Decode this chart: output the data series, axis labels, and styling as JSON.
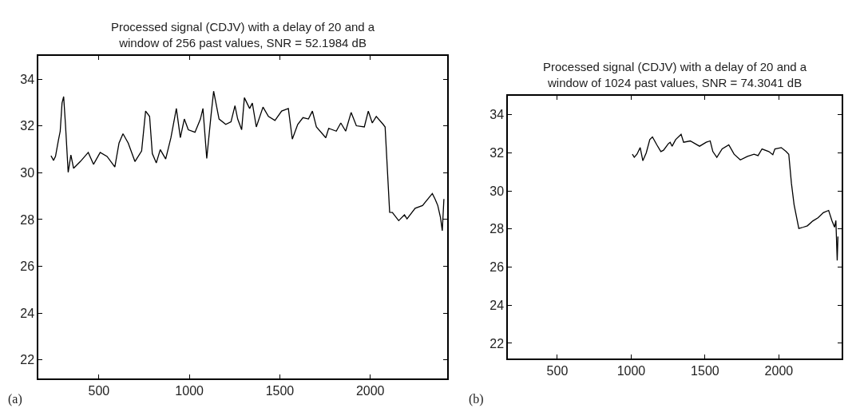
{
  "chart_data": [
    {
      "type": "line",
      "title": "Processed signal (CDJV) with a delay of 20 and a\nwindow of 256 past values, SNR = 52.1984 dB",
      "annotations": [
        "(a)"
      ],
      "xlim": [
        165,
        2425
      ],
      "xticks": [
        500,
        1000,
        1500,
        2000
      ],
      "ylim": [
        21.2,
        35
      ],
      "yticks": [
        22,
        24,
        26,
        28,
        30,
        32,
        34
      ],
      "series": [
        {
          "color": "#000000",
          "x": [
            235,
            249,
            260,
            276,
            286,
            296,
            305,
            315,
            330,
            345,
            360,
            397,
            441,
            470,
            507,
            545,
            588,
            611,
            633,
            662,
            699,
            736,
            758,
            780,
            795,
            817,
            839,
            869,
            898,
            928,
            950,
            972,
            994,
            1031,
            1061,
            1075,
            1096,
            1119,
            1134,
            1164,
            1201,
            1230,
            1252,
            1267,
            1289,
            1304,
            1333,
            1348,
            1370,
            1407,
            1437,
            1473,
            1510,
            1547,
            1569,
            1599,
            1628,
            1658,
            1680,
            1702,
            1754,
            1770,
            1812,
            1837,
            1864,
            1894,
            1923,
            1967,
            1989,
            2011,
            2033,
            2071,
            2082,
            2107,
            2122,
            2157,
            2189,
            2203,
            2248,
            2289,
            2343,
            2358,
            2373,
            2388,
            2398,
            2407
          ],
          "values": [
            30.73,
            30.53,
            30.7,
            31.39,
            31.78,
            32.98,
            33.26,
            32.07,
            30.02,
            30.76,
            30.19,
            30.48,
            30.87,
            30.36,
            30.87,
            30.7,
            30.25,
            31.27,
            31.67,
            31.27,
            30.48,
            30.93,
            32.64,
            32.41,
            30.82,
            30.42,
            30.99,
            30.59,
            31.5,
            32.75,
            31.5,
            32.3,
            31.84,
            31.73,
            32.3,
            32.75,
            30.61,
            32.41,
            33.49,
            32.3,
            32.07,
            32.18,
            32.87,
            32.3,
            31.84,
            33.21,
            32.75,
            32.98,
            31.96,
            32.81,
            32.41,
            32.24,
            32.64,
            32.75,
            31.44,
            32.07,
            32.36,
            32.3,
            32.64,
            31.96,
            31.5,
            31.9,
            31.78,
            32.13,
            31.78,
            32.58,
            32.01,
            31.96,
            32.64,
            32.13,
            32.41,
            32.07,
            31.96,
            28.31,
            28.3,
            27.95,
            28.2,
            28.03,
            28.48,
            28.6,
            29.11,
            28.88,
            28.6,
            28.09,
            27.52,
            28.88
          ]
        }
      ]
    },
    {
      "type": "line",
      "title": "Processed signal (CDJV) with a delay of 20 and a\nwindow of 1024 past values, SNR = 74.3041 dB",
      "annotations": [
        "(b)"
      ],
      "xlim": [
        165,
        2425
      ],
      "xticks": [
        500,
        1000,
        1500,
        2000
      ],
      "ylim": [
        21.2,
        35
      ],
      "yticks": [
        22,
        24,
        26,
        28,
        30,
        32,
        34
      ],
      "series": [
        {
          "color": "#000000",
          "x": [
            1008,
            1021,
            1039,
            1061,
            1079,
            1102,
            1126,
            1144,
            1174,
            1201,
            1219,
            1252,
            1264,
            1277,
            1301,
            1338,
            1355,
            1400,
            1463,
            1508,
            1535,
            1553,
            1580,
            1616,
            1661,
            1697,
            1739,
            1787,
            1832,
            1859,
            1886,
            1932,
            1959,
            1973,
            2016,
            2049,
            2067,
            2085,
            2103,
            2135,
            2166,
            2193,
            2229,
            2265,
            2301,
            2337,
            2359,
            2377,
            2386,
            2395,
            2400
          ],
          "values": [
            31.93,
            31.77,
            31.93,
            32.28,
            31.59,
            32.0,
            32.7,
            32.84,
            32.42,
            32.07,
            32.14,
            32.49,
            32.56,
            32.35,
            32.7,
            32.98,
            32.56,
            32.63,
            32.35,
            32.56,
            32.63,
            32.07,
            31.77,
            32.21,
            32.42,
            31.93,
            31.63,
            31.82,
            31.93,
            31.86,
            32.21,
            32.07,
            31.91,
            32.21,
            32.28,
            32.07,
            31.93,
            30.4,
            29.28,
            28.03,
            28.1,
            28.17,
            28.42,
            28.59,
            28.86,
            28.98,
            28.45,
            28.1,
            28.45,
            26.35,
            27.61
          ]
        }
      ]
    }
  ]
}
